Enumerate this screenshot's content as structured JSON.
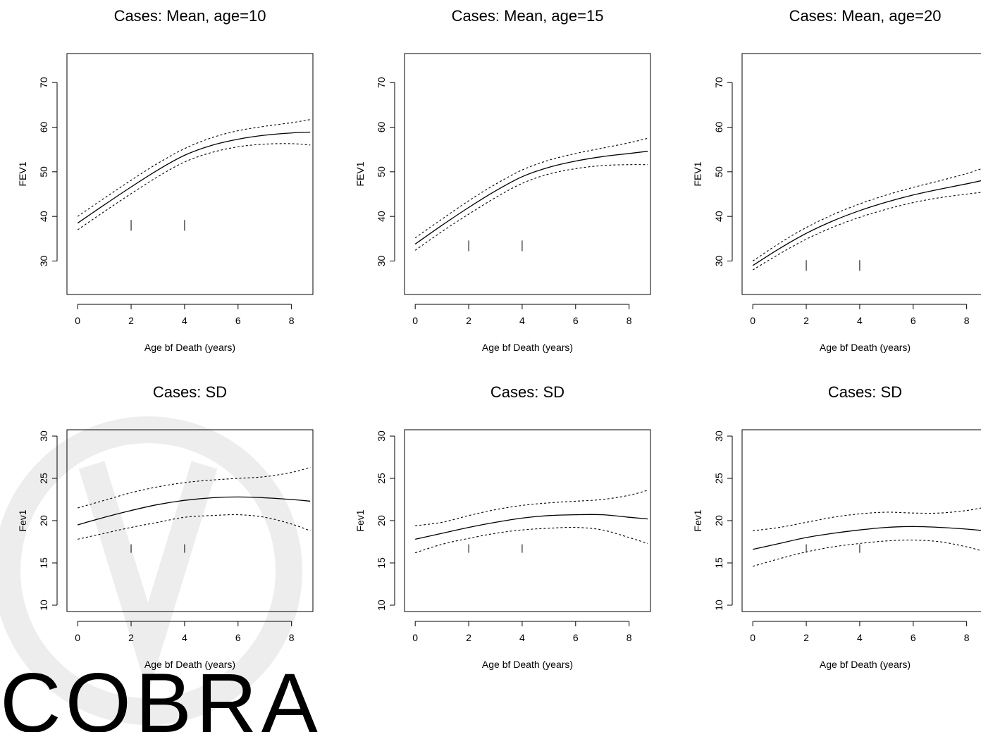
{
  "watermark": {
    "text": "COBRA",
    "color": "#e6e6e6"
  },
  "chart_data": [
    {
      "type": "line",
      "title": "Cases: Mean, age=10",
      "xlabel": "Age bf Death (years)",
      "ylabel": "FEV1",
      "xlim": [
        -0.4,
        8.8
      ],
      "ylim": [
        22.5,
        76.5
      ],
      "xticks": [
        0,
        2,
        4,
        6,
        8
      ],
      "yticks": [
        30,
        40,
        50,
        60,
        70
      ],
      "rug": {
        "x": [
          2,
          4
        ],
        "y_low": 36.8,
        "y_high": 39.2
      },
      "series": [
        {
          "style": "solid",
          "x": [
            0,
            1,
            2,
            3,
            4,
            5,
            6,
            7,
            8,
            8.7
          ],
          "y": [
            38.5,
            42.6,
            46.6,
            50.4,
            53.7,
            55.9,
            57.3,
            58.2,
            58.7,
            58.9
          ]
        },
        {
          "style": "dotted",
          "x": [
            0,
            1,
            2,
            3,
            4,
            5,
            6,
            7,
            8,
            8.7
          ],
          "y": [
            40.0,
            44.1,
            48.1,
            51.9,
            55.2,
            57.6,
            59.2,
            60.2,
            61.0,
            61.7
          ]
        },
        {
          "style": "dotted",
          "x": [
            0,
            1,
            2,
            3,
            4,
            5,
            6,
            7,
            8,
            8.7
          ],
          "y": [
            37.0,
            41.1,
            45.1,
            48.9,
            52.2,
            54.3,
            55.6,
            56.2,
            56.3,
            56.0
          ]
        }
      ]
    },
    {
      "type": "line",
      "title": "Cases: Mean, age=15",
      "xlabel": "Age bf Death (years)",
      "ylabel": "FEV1",
      "xlim": [
        -0.4,
        8.8
      ],
      "ylim": [
        22.5,
        76.5
      ],
      "xticks": [
        0,
        2,
        4,
        6,
        8
      ],
      "yticks": [
        30,
        40,
        50,
        60,
        70
      ],
      "rug": {
        "x": [
          2,
          4
        ],
        "y_low": 32.2,
        "y_high": 34.6
      },
      "series": [
        {
          "style": "solid",
          "x": [
            0,
            1,
            2,
            3,
            4,
            5,
            6,
            7,
            8,
            8.7
          ],
          "y": [
            33.8,
            38.0,
            42.0,
            45.7,
            48.9,
            51.0,
            52.4,
            53.4,
            54.1,
            54.6
          ]
        },
        {
          "style": "dotted",
          "x": [
            0,
            1,
            2,
            3,
            4,
            5,
            6,
            7,
            8,
            8.7
          ],
          "y": [
            35.2,
            39.4,
            43.5,
            47.2,
            50.4,
            52.6,
            54.1,
            55.3,
            56.5,
            57.5
          ]
        },
        {
          "style": "dotted",
          "x": [
            0,
            1,
            2,
            3,
            4,
            5,
            6,
            7,
            8,
            8.7
          ],
          "y": [
            32.4,
            36.6,
            40.5,
            44.2,
            47.4,
            49.5,
            50.7,
            51.4,
            51.6,
            51.6
          ]
        }
      ]
    },
    {
      "type": "line",
      "title": "Cases: Mean, age=20",
      "xlabel": "Age bf Death (years)",
      "ylabel": "FEV1",
      "xlim": [
        -0.4,
        8.8
      ],
      "ylim": [
        22.5,
        76.5
      ],
      "xticks": [
        0,
        2,
        4,
        6,
        8
      ],
      "yticks": [
        30,
        40,
        50,
        60,
        70
      ],
      "rug": {
        "x": [
          2,
          4
        ],
        "y_low": 27.8,
        "y_high": 30.2
      },
      "series": [
        {
          "style": "solid",
          "x": [
            0,
            1,
            2,
            3,
            4,
            5,
            6,
            7,
            8,
            8.7
          ],
          "y": [
            29.0,
            32.8,
            36.2,
            39.0,
            41.3,
            43.2,
            44.8,
            46.1,
            47.3,
            48.2
          ]
        },
        {
          "style": "dotted",
          "x": [
            0,
            1,
            2,
            3,
            4,
            5,
            6,
            7,
            8,
            8.7
          ],
          "y": [
            30.0,
            34.0,
            37.5,
            40.4,
            42.8,
            44.8,
            46.5,
            48.0,
            49.6,
            51.0
          ]
        },
        {
          "style": "dotted",
          "x": [
            0,
            1,
            2,
            3,
            4,
            5,
            6,
            7,
            8,
            8.7
          ],
          "y": [
            28.0,
            31.6,
            34.9,
            37.6,
            39.8,
            41.6,
            43.1,
            44.2,
            45.0,
            45.5
          ]
        }
      ]
    },
    {
      "type": "line",
      "title": "Cases: SD",
      "xlabel": "Age bf Death (years)",
      "ylabel": "Fev1",
      "xlim": [
        -0.4,
        8.8
      ],
      "ylim": [
        9.25,
        30.75
      ],
      "xticks": [
        0,
        2,
        4,
        6,
        8
      ],
      "yticks": [
        10,
        15,
        20,
        25,
        30
      ],
      "rug": {
        "x": [
          2,
          4
        ],
        "y_low": 16.2,
        "y_high": 17.2
      },
      "series": [
        {
          "style": "solid",
          "x": [
            0,
            1,
            2,
            3,
            4,
            5,
            6,
            7,
            8,
            8.7
          ],
          "y": [
            19.5,
            20.4,
            21.2,
            21.9,
            22.4,
            22.7,
            22.8,
            22.7,
            22.5,
            22.3
          ]
        },
        {
          "style": "dotted",
          "x": [
            0,
            1,
            2,
            3,
            4,
            5,
            6,
            7,
            8,
            8.7
          ],
          "y": [
            21.5,
            22.4,
            23.3,
            24.0,
            24.5,
            24.8,
            25.0,
            25.2,
            25.7,
            26.3
          ]
        },
        {
          "style": "dotted",
          "x": [
            0,
            1,
            2,
            3,
            4,
            5,
            6,
            7,
            8,
            8.7
          ],
          "y": [
            17.8,
            18.5,
            19.2,
            19.8,
            20.4,
            20.6,
            20.7,
            20.4,
            19.6,
            18.8
          ]
        }
      ]
    },
    {
      "type": "line",
      "title": "Cases: SD",
      "xlabel": "Age bf Death (years)",
      "ylabel": "Fev1",
      "xlim": [
        -0.4,
        8.8
      ],
      "ylim": [
        9.25,
        30.75
      ],
      "xticks": [
        0,
        2,
        4,
        6,
        8
      ],
      "yticks": [
        10,
        15,
        20,
        25,
        30
      ],
      "rug": {
        "x": [
          2,
          4
        ],
        "y_low": 16.2,
        "y_high": 17.2
      },
      "series": [
        {
          "style": "solid",
          "x": [
            0,
            1,
            2,
            3,
            4,
            5,
            6,
            7,
            8,
            8.7
          ],
          "y": [
            17.8,
            18.5,
            19.2,
            19.8,
            20.3,
            20.6,
            20.7,
            20.7,
            20.4,
            20.2
          ]
        },
        {
          "style": "dotted",
          "x": [
            0,
            1,
            2,
            3,
            4,
            5,
            6,
            7,
            8,
            8.7
          ],
          "y": [
            19.4,
            19.8,
            20.6,
            21.3,
            21.8,
            22.1,
            22.3,
            22.5,
            23.0,
            23.6
          ]
        },
        {
          "style": "dotted",
          "x": [
            0,
            1,
            2,
            3,
            4,
            5,
            6,
            7,
            8,
            8.7
          ],
          "y": [
            16.2,
            17.2,
            17.9,
            18.5,
            18.9,
            19.1,
            19.2,
            18.9,
            18.0,
            17.3
          ]
        }
      ]
    },
    {
      "type": "line",
      "title": "Cases: SD",
      "xlabel": "Age bf Death (years)",
      "ylabel": "Fev1",
      "xlim": [
        -0.4,
        8.8
      ],
      "ylim": [
        9.25,
        30.75
      ],
      "xticks": [
        0,
        2,
        4,
        6,
        8
      ],
      "yticks": [
        10,
        15,
        20,
        25,
        30
      ],
      "rug": {
        "x": [
          2,
          4
        ],
        "y_low": 16.2,
        "y_high": 17.2
      },
      "series": [
        {
          "style": "solid",
          "x": [
            0,
            1,
            2,
            3,
            4,
            5,
            6,
            7,
            8,
            8.7
          ],
          "y": [
            16.6,
            17.3,
            18.0,
            18.5,
            18.9,
            19.2,
            19.3,
            19.2,
            19.0,
            18.8
          ]
        },
        {
          "style": "dotted",
          "x": [
            0,
            1,
            2,
            3,
            4,
            5,
            6,
            7,
            8,
            8.7
          ],
          "y": [
            18.8,
            19.2,
            19.8,
            20.4,
            20.8,
            21.0,
            20.9,
            20.9,
            21.2,
            21.6
          ]
        },
        {
          "style": "dotted",
          "x": [
            0,
            1,
            2,
            3,
            4,
            5,
            6,
            7,
            8,
            8.7
          ],
          "y": [
            14.6,
            15.5,
            16.3,
            16.9,
            17.3,
            17.6,
            17.7,
            17.5,
            16.9,
            16.3
          ]
        }
      ]
    }
  ]
}
